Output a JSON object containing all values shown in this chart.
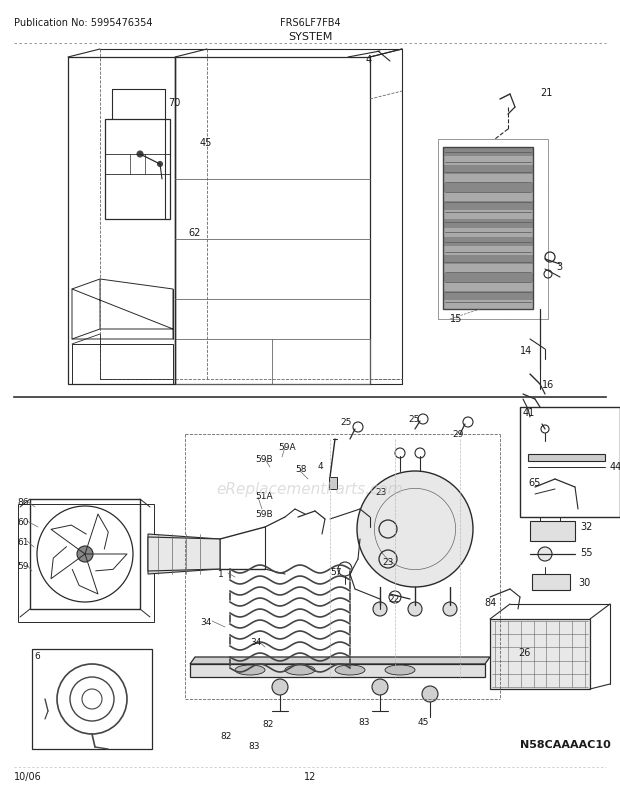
{
  "title": "SYSTEM",
  "pub_no": "Publication No: 5995476354",
  "model": "FRS6LF7FB4",
  "date": "10/06",
  "page": "12",
  "watermark": "eReplacementParts.com",
  "diagram_code": "N58CAAAAC10",
  "bg_color": "#ffffff",
  "line_color": "#2a2a2a",
  "text_color": "#1a1a1a",
  "gray1": "#888888",
  "gray2": "#aaaaaa",
  "gray3": "#cccccc",
  "dark_gray": "#444444",
  "mid_gray": "#666666"
}
